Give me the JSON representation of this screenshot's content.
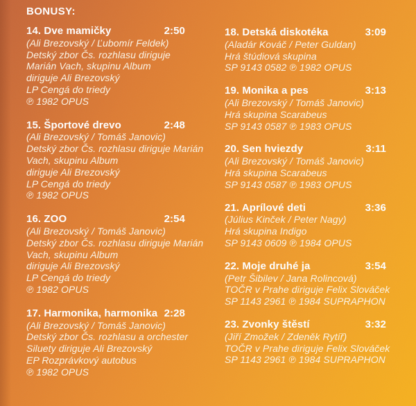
{
  "heading": "BONUSY:",
  "columns": {
    "left": [
      {
        "number_title": "14. Dve mamičky",
        "duration": "2:50",
        "credits": [
          "(Ali Brezovský / Ľubomír Feldek)",
          "Detský zbor Čs. rozhlasu diriguje",
          "Marián Vach, skupinu Album",
          "diriguje Ali Brezovský",
          "LP Cengá do triedy",
          "℗ 1982 OPUS"
        ]
      },
      {
        "number_title": "15. Športové drevo",
        "duration": "2:48",
        "credits": [
          "(Ali Brezovský / Tomáš Janovic)",
          "Detský zbor Čs. rozhlasu diriguje Marián",
          "Vach, skupinu Album",
          "diriguje Ali Brezovský",
          "LP Cengá do triedy",
          "℗ 1982 OPUS"
        ]
      },
      {
        "number_title": "16. ZOO",
        "duration": "2:54",
        "credits": [
          "(Ali Brezovský / Tomáš Janovic)",
          "Detský zbor Čs. rozhlasu diriguje Marián",
          "Vach, skupinu Album",
          "diriguje Ali Brezovský",
          "LP Cengá do triedy",
          "℗ 1982 OPUS"
        ]
      },
      {
        "number_title": "17. Harmonika, harmonika",
        "duration": "2:28",
        "credits": [
          "(Ali Brezovský / Tomáš Janovic)",
          "Detský zbor Čs. rozhlasu a orchester",
          "Siluety diriguje Ali Brezovský",
          "EP Rozprávkový autobus",
          "℗ 1982 OPUS"
        ]
      }
    ],
    "right": [
      {
        "number_title": "18. Detská diskotéka",
        "duration": "3:09",
        "credits": [
          "(Aladár Kováč / Peter Guldan)",
          "Hrá štúdiová skupina",
          "SP 9143 0582 ℗ 1982 OPUS"
        ]
      },
      {
        "number_title": "19. Monika a pes",
        "duration": "3:13",
        "credits": [
          "(Ali Brezovský / Tomáš Janovic)",
          "Hrá skupina Scarabeus",
          "SP 9143 0587 ℗ 1983 OPUS"
        ]
      },
      {
        "number_title": "20. Sen hviezdy",
        "duration": "3:11",
        "credits": [
          "(Ali Brezovský / Tomáš Janovic)",
          "Hrá skupina Scarabeus",
          "SP 9143 0587 ℗ 1983 OPUS"
        ]
      },
      {
        "number_title": "21. Aprílové deti",
        "duration": "3:36",
        "credits": [
          "(Július Kinček / Peter Nagy)",
          "Hrá skupina Indigo",
          "SP 9143 0609 ℗ 1984 OPUS"
        ]
      },
      {
        "number_title": "22. Moje druhé ja",
        "duration": "3:54",
        "credits": [
          "(Petr Šibilev / Jana Rolincová)",
          "TOČR v Prahe diriguje Felix Slováček",
          "SP 1143 2961 ℗ 1984 SUPRAPHON"
        ]
      },
      {
        "number_title": "23. Zvonky štěstí",
        "duration": "3:32",
        "credits": [
          "(Jiří Zmožek / Zdeněk Rytíř)",
          "TOČR v Prahe diriguje Felix Slováček",
          "SP 1143 2961 ℗ 1984 SUPRAPHON"
        ]
      }
    ]
  },
  "colors": {
    "gradient_top_left": "#c4653a",
    "gradient_top_right": "#ef9830",
    "gradient_bottom_left": "#e1823d",
    "gradient_bottom_right": "#f4ad24",
    "text": "#ffffff"
  }
}
